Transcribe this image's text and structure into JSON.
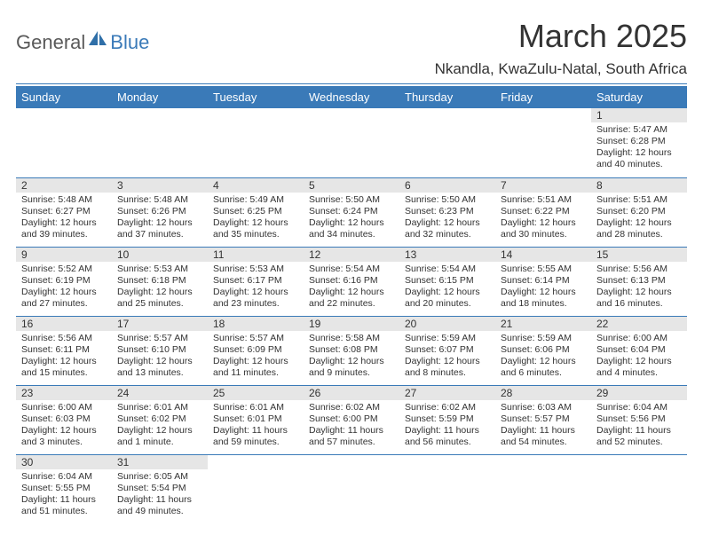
{
  "logo": {
    "word1": "General",
    "word2": "Blue",
    "icon_color": "#2f6fa8"
  },
  "title": {
    "month": "March 2025",
    "location": "Nkandla, KwaZulu-Natal, South Africa"
  },
  "colors": {
    "header_bg": "#3a7ab8",
    "daynum_bg": "#e6e6e6",
    "text": "#333333",
    "divider": "#3a7ab8"
  },
  "daynames": [
    "Sunday",
    "Monday",
    "Tuesday",
    "Wednesday",
    "Thursday",
    "Friday",
    "Saturday"
  ],
  "weeks": [
    [
      null,
      null,
      null,
      null,
      null,
      null,
      {
        "n": "1",
        "sr": "5:47 AM",
        "ss": "6:28 PM",
        "dl": "12 hours and 40 minutes."
      }
    ],
    [
      {
        "n": "2",
        "sr": "5:48 AM",
        "ss": "6:27 PM",
        "dl": "12 hours and 39 minutes."
      },
      {
        "n": "3",
        "sr": "5:48 AM",
        "ss": "6:26 PM",
        "dl": "12 hours and 37 minutes."
      },
      {
        "n": "4",
        "sr": "5:49 AM",
        "ss": "6:25 PM",
        "dl": "12 hours and 35 minutes."
      },
      {
        "n": "5",
        "sr": "5:50 AM",
        "ss": "6:24 PM",
        "dl": "12 hours and 34 minutes."
      },
      {
        "n": "6",
        "sr": "5:50 AM",
        "ss": "6:23 PM",
        "dl": "12 hours and 32 minutes."
      },
      {
        "n": "7",
        "sr": "5:51 AM",
        "ss": "6:22 PM",
        "dl": "12 hours and 30 minutes."
      },
      {
        "n": "8",
        "sr": "5:51 AM",
        "ss": "6:20 PM",
        "dl": "12 hours and 28 minutes."
      }
    ],
    [
      {
        "n": "9",
        "sr": "5:52 AM",
        "ss": "6:19 PM",
        "dl": "12 hours and 27 minutes."
      },
      {
        "n": "10",
        "sr": "5:53 AM",
        "ss": "6:18 PM",
        "dl": "12 hours and 25 minutes."
      },
      {
        "n": "11",
        "sr": "5:53 AM",
        "ss": "6:17 PM",
        "dl": "12 hours and 23 minutes."
      },
      {
        "n": "12",
        "sr": "5:54 AM",
        "ss": "6:16 PM",
        "dl": "12 hours and 22 minutes."
      },
      {
        "n": "13",
        "sr": "5:54 AM",
        "ss": "6:15 PM",
        "dl": "12 hours and 20 minutes."
      },
      {
        "n": "14",
        "sr": "5:55 AM",
        "ss": "6:14 PM",
        "dl": "12 hours and 18 minutes."
      },
      {
        "n": "15",
        "sr": "5:56 AM",
        "ss": "6:13 PM",
        "dl": "12 hours and 16 minutes."
      }
    ],
    [
      {
        "n": "16",
        "sr": "5:56 AM",
        "ss": "6:11 PM",
        "dl": "12 hours and 15 minutes."
      },
      {
        "n": "17",
        "sr": "5:57 AM",
        "ss": "6:10 PM",
        "dl": "12 hours and 13 minutes."
      },
      {
        "n": "18",
        "sr": "5:57 AM",
        "ss": "6:09 PM",
        "dl": "12 hours and 11 minutes."
      },
      {
        "n": "19",
        "sr": "5:58 AM",
        "ss": "6:08 PM",
        "dl": "12 hours and 9 minutes."
      },
      {
        "n": "20",
        "sr": "5:59 AM",
        "ss": "6:07 PM",
        "dl": "12 hours and 8 minutes."
      },
      {
        "n": "21",
        "sr": "5:59 AM",
        "ss": "6:06 PM",
        "dl": "12 hours and 6 minutes."
      },
      {
        "n": "22",
        "sr": "6:00 AM",
        "ss": "6:04 PM",
        "dl": "12 hours and 4 minutes."
      }
    ],
    [
      {
        "n": "23",
        "sr": "6:00 AM",
        "ss": "6:03 PM",
        "dl": "12 hours and 3 minutes."
      },
      {
        "n": "24",
        "sr": "6:01 AM",
        "ss": "6:02 PM",
        "dl": "12 hours and 1 minute."
      },
      {
        "n": "25",
        "sr": "6:01 AM",
        "ss": "6:01 PM",
        "dl": "11 hours and 59 minutes."
      },
      {
        "n": "26",
        "sr": "6:02 AM",
        "ss": "6:00 PM",
        "dl": "11 hours and 57 minutes."
      },
      {
        "n": "27",
        "sr": "6:02 AM",
        "ss": "5:59 PM",
        "dl": "11 hours and 56 minutes."
      },
      {
        "n": "28",
        "sr": "6:03 AM",
        "ss": "5:57 PM",
        "dl": "11 hours and 54 minutes."
      },
      {
        "n": "29",
        "sr": "6:04 AM",
        "ss": "5:56 PM",
        "dl": "11 hours and 52 minutes."
      }
    ],
    [
      {
        "n": "30",
        "sr": "6:04 AM",
        "ss": "5:55 PM",
        "dl": "11 hours and 51 minutes."
      },
      {
        "n": "31",
        "sr": "6:05 AM",
        "ss": "5:54 PM",
        "dl": "11 hours and 49 minutes."
      },
      null,
      null,
      null,
      null,
      null
    ]
  ],
  "labels": {
    "sunrise": "Sunrise:",
    "sunset": "Sunset:",
    "daylight": "Daylight:"
  }
}
